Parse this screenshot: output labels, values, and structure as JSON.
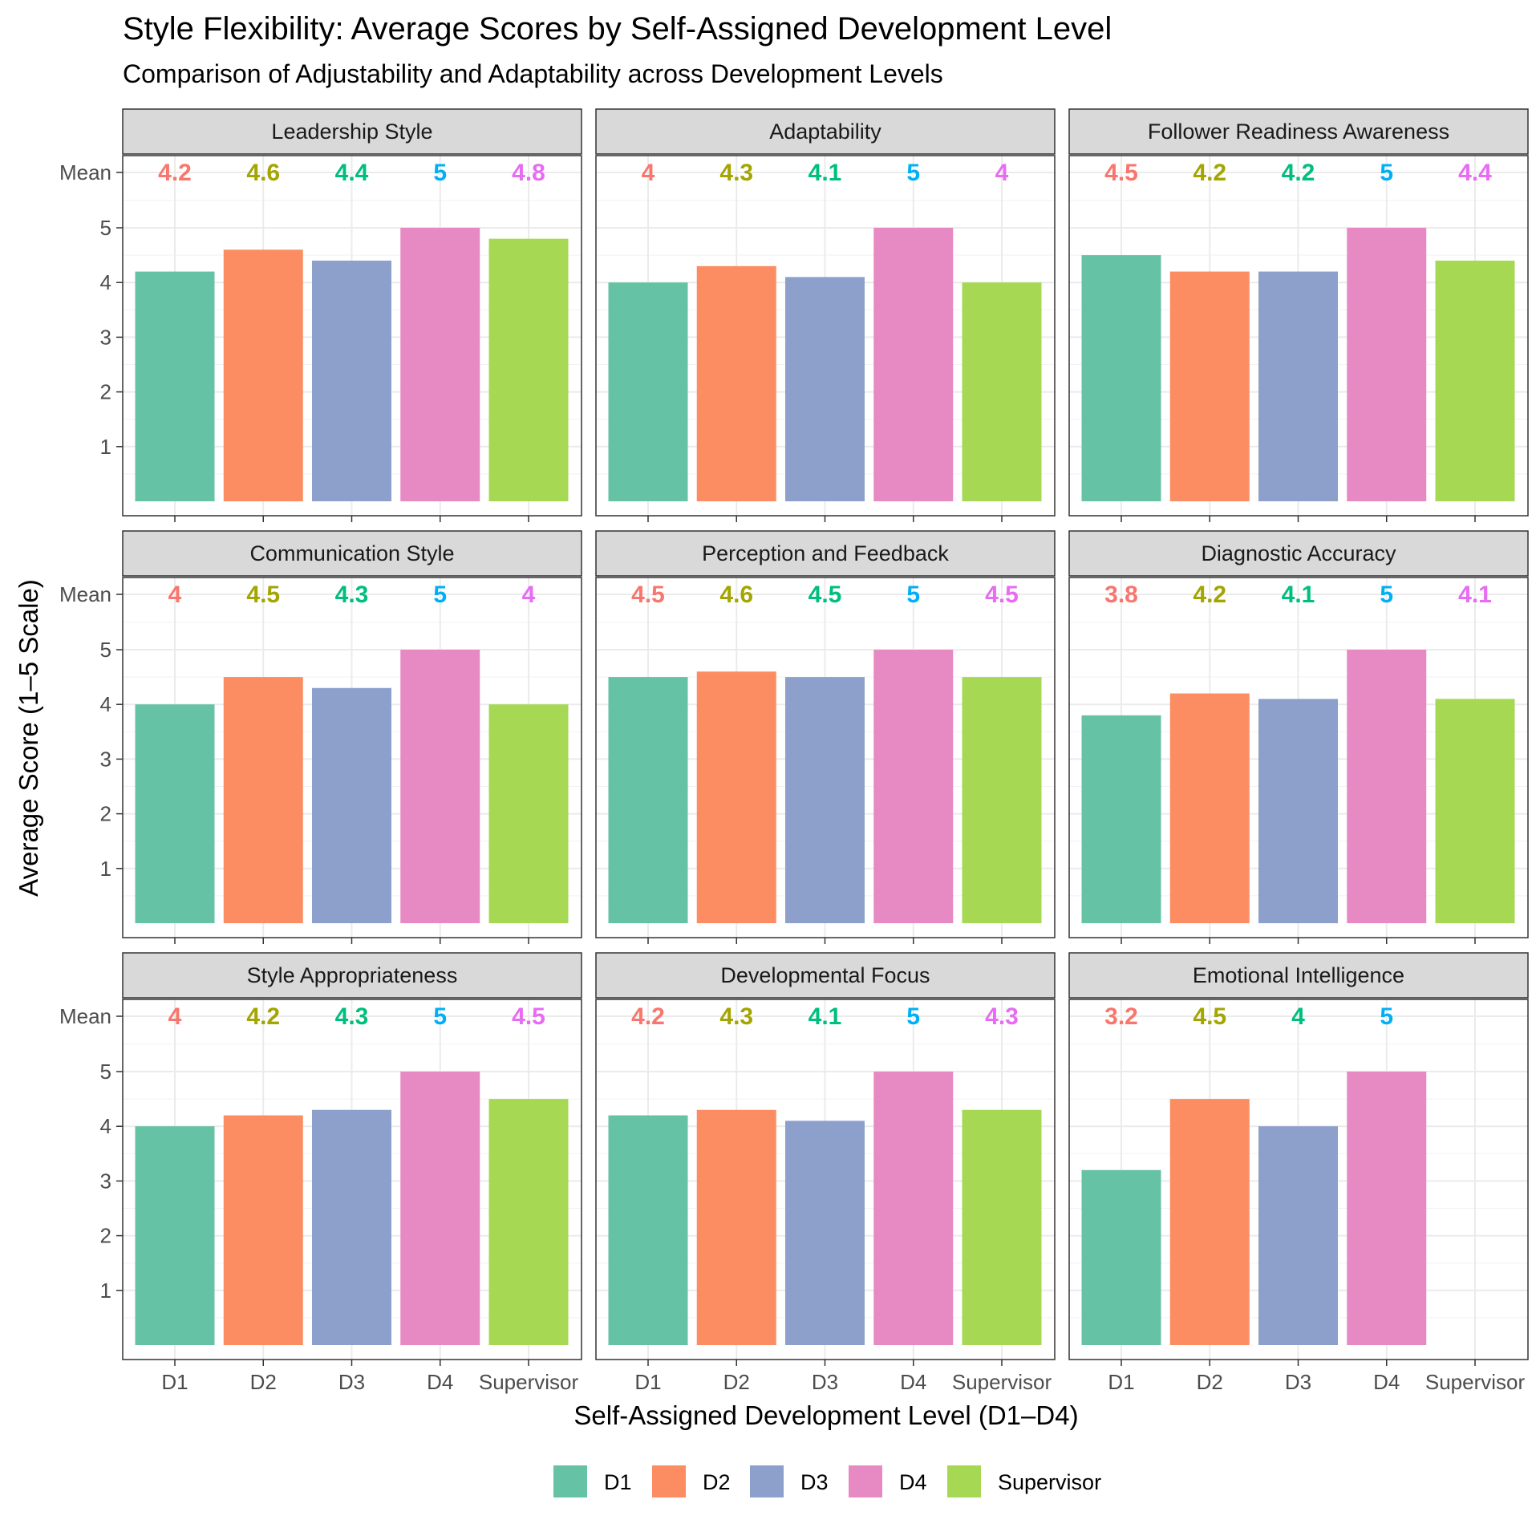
{
  "chart_data": {
    "type": "bar",
    "title": "Style Flexibility: Average Scores by Self-Assigned Development Level",
    "subtitle": "Comparison of Adjustability and Adaptability across Development Levels",
    "xlabel": "Self-Assigned Development Level (D1–D4)",
    "ylabel": "Average Score (1–5 Scale)",
    "mean_row_label": "Mean",
    "categories": [
      "D1",
      "D2",
      "D3",
      "D4",
      "Supervisor"
    ],
    "y_ticks": [
      1,
      2,
      3,
      4,
      5
    ],
    "ylim": [
      0,
      5.9
    ],
    "grid": true,
    "facet_layout": "3x3",
    "legend_position": "bottom",
    "legend": [
      {
        "label": "D1",
        "color": "#66C2A5"
      },
      {
        "label": "D2",
        "color": "#FC8D62"
      },
      {
        "label": "D3",
        "color": "#8DA0CB"
      },
      {
        "label": "D4",
        "color": "#E78AC3"
      },
      {
        "label": "Supervisor",
        "color": "#A6D854"
      }
    ],
    "bar_colors": [
      "#66C2A5",
      "#FC8D62",
      "#8DA0CB",
      "#E78AC3",
      "#A6D854"
    ],
    "mean_label_colors": [
      "#F8766D",
      "#A3A500",
      "#00BF7D",
      "#00B0F6",
      "#E76BF3"
    ],
    "panels": [
      {
        "name": "Leadership Style",
        "values": [
          4.2,
          4.6,
          4.4,
          5,
          4.8
        ],
        "mean_labels": [
          "4.2",
          "4.6",
          "4.4",
          "5",
          "4.8"
        ]
      },
      {
        "name": "Adaptability",
        "values": [
          4,
          4.3,
          4.1,
          5,
          4
        ],
        "mean_labels": [
          "4",
          "4.3",
          "4.1",
          "5",
          "4"
        ]
      },
      {
        "name": "Follower Readiness Awareness",
        "values": [
          4.5,
          4.2,
          4.2,
          5,
          4.4
        ],
        "mean_labels": [
          "4.5",
          "4.2",
          "4.2",
          "5",
          "4.4"
        ]
      },
      {
        "name": "Communication Style",
        "values": [
          4,
          4.5,
          4.3,
          5,
          4
        ],
        "mean_labels": [
          "4",
          "4.5",
          "4.3",
          "5",
          "4"
        ]
      },
      {
        "name": "Perception and Feedback",
        "values": [
          4.5,
          4.6,
          4.5,
          5,
          4.5
        ],
        "mean_labels": [
          "4.5",
          "4.6",
          "4.5",
          "5",
          "4.5"
        ]
      },
      {
        "name": "Diagnostic Accuracy",
        "values": [
          3.8,
          4.2,
          4.1,
          5,
          4.1
        ],
        "mean_labels": [
          "3.8",
          "4.2",
          "4.1",
          "5",
          "4.1"
        ]
      },
      {
        "name": "Style Appropriateness",
        "values": [
          4,
          4.2,
          4.3,
          5,
          4.5
        ],
        "mean_labels": [
          "4",
          "4.2",
          "4.3",
          "5",
          "4.5"
        ]
      },
      {
        "name": "Developmental Focus",
        "values": [
          4.2,
          4.3,
          4.1,
          5,
          4.3
        ],
        "mean_labels": [
          "4.2",
          "4.3",
          "4.1",
          "5",
          "4.3"
        ]
      },
      {
        "name": "Emotional Intelligence",
        "values": [
          3.2,
          4.5,
          4,
          5,
          null
        ],
        "mean_labels": [
          "3.2",
          "4.5",
          "4",
          "5",
          ""
        ]
      }
    ]
  }
}
